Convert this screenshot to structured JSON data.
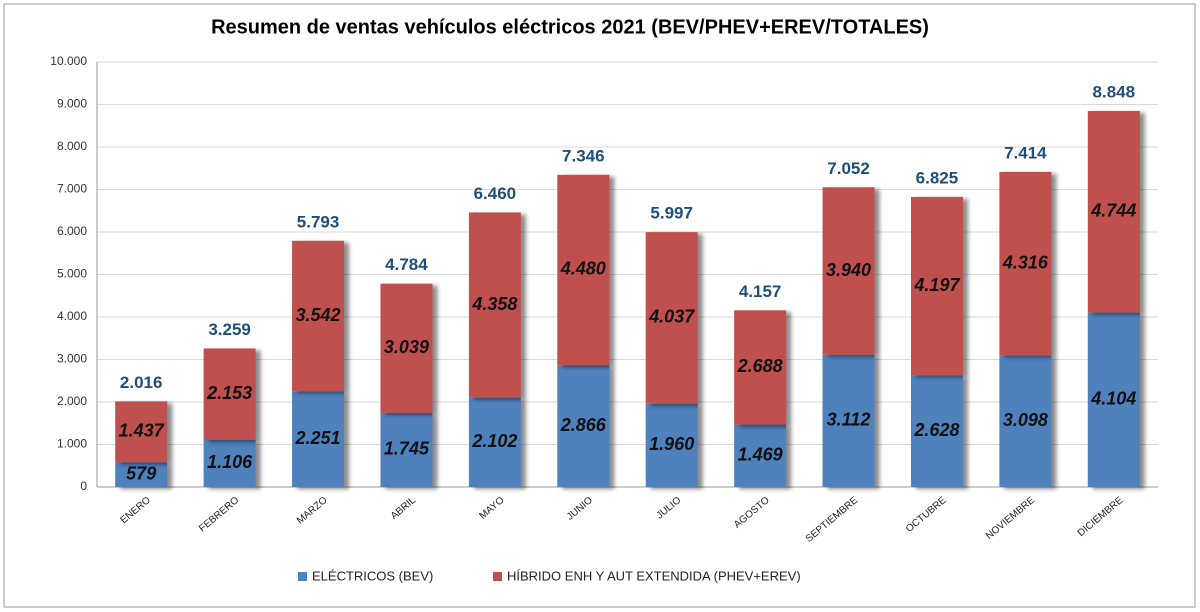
{
  "chart_data": {
    "type": "stacked_bar",
    "title": "Resumen de ventas vehículos eléctricos 2021 (BEV/PHEV+EREV/TOTALES)",
    "categories": [
      "ENERO",
      "FEBRERO",
      "MARZO",
      "ABRIL",
      "MAYO",
      "JUNIO",
      "JULIO",
      "AGOSTO",
      "SEPTIEMBRE",
      "OCTUBRE",
      "NOVIEMBRE",
      "DICIEMBRE"
    ],
    "series": [
      {
        "name": "ELÉCTRICOS (BEV)",
        "color": "#4f81bd",
        "values": [
          579,
          1106,
          2251,
          1745,
          2102,
          2866,
          1960,
          1469,
          3112,
          2628,
          3098,
          4104
        ],
        "value_labels": [
          "579",
          "1.106",
          "2.251",
          "1.745",
          "2.102",
          "2.866",
          "1.960",
          "1.469",
          "3.112",
          "2.628",
          "3.098",
          "4.104"
        ]
      },
      {
        "name": "HÍBRIDO ENH Y AUT EXTENDIDA (PHEV+EREV)",
        "color": "#c0504d",
        "values": [
          1437,
          2153,
          3542,
          3039,
          4358,
          4480,
          4037,
          2688,
          3940,
          4197,
          4316,
          4744
        ],
        "value_labels": [
          "1.437",
          "2.153",
          "3.542",
          "3.039",
          "4.358",
          "4.480",
          "4.037",
          "2.688",
          "3.940",
          "4.197",
          "4.316",
          "4.744"
        ]
      }
    ],
    "totals": {
      "values": [
        2016,
        3259,
        5793,
        4784,
        6460,
        7346,
        5997,
        4157,
        7052,
        6825,
        7414,
        8848
      ],
      "value_labels": [
        "2.016",
        "3.259",
        "5.793",
        "4.784",
        "6.460",
        "7.346",
        "5.997",
        "4.157",
        "7.052",
        "6.825",
        "7.414",
        "8.848"
      ]
    },
    "ylim": [
      0,
      10000
    ],
    "yticks": [
      0,
      {
        "value": 1000,
        "label": "1.000"
      },
      {
        "value": 2000,
        "label": "2.000"
      },
      {
        "value": 3000,
        "label": "3.000"
      },
      {
        "value": 4000,
        "label": "4.000"
      },
      {
        "value": 5000,
        "label": "5.000"
      },
      {
        "value": 6000,
        "label": "6.000"
      },
      {
        "value": 7000,
        "label": "7.000"
      },
      {
        "value": 8000,
        "label": "8.000"
      },
      {
        "value": 9000,
        "label": "9.000"
      },
      {
        "value": 10000,
        "label": "10.000"
      }
    ],
    "grid": true,
    "legend": "bottom"
  }
}
